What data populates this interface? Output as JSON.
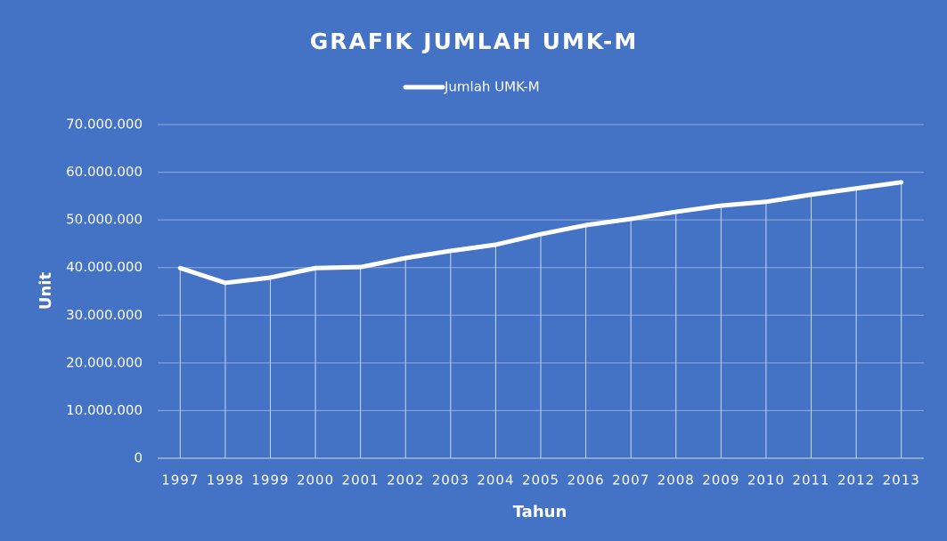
{
  "chart_data": {
    "type": "line",
    "title": "GRAFIK JUMLAH UMK-M",
    "x_label": "Tahun",
    "y_label": "Unit",
    "categories": [
      "1997",
      "1998",
      "1999",
      "2000",
      "2001",
      "2002",
      "2003",
      "2004",
      "2005",
      "2006",
      "2007",
      "2008",
      "2009",
      "2010",
      "2011",
      "2012",
      "2013"
    ],
    "series": [
      {
        "name": "Jumlah UMK-M",
        "color": "#ffffff",
        "values": [
          39900000,
          36800000,
          37900000,
          39900000,
          40100000,
          42000000,
          43500000,
          44800000,
          47000000,
          48900000,
          50200000,
          51700000,
          53000000,
          53800000,
          55300000,
          56600000,
          57900000
        ]
      }
    ],
    "ylim": [
      0,
      70000000
    ],
    "yticks": [
      0,
      {
        "value": 10000000,
        "label": "10.000.000"
      },
      {
        "value": 20000000,
        "label": "20.000.000"
      },
      {
        "value": 30000000,
        "label": "30.000.000"
      },
      {
        "value": 40000000,
        "label": "40.000.000"
      },
      {
        "value": 50000000,
        "label": "50.000.000"
      },
      {
        "value": 60000000,
        "label": "60.000.000"
      },
      {
        "value": 70000000,
        "label": "70.000.000"
      }
    ],
    "grid": true,
    "drop_lines": true,
    "legend": "top"
  }
}
